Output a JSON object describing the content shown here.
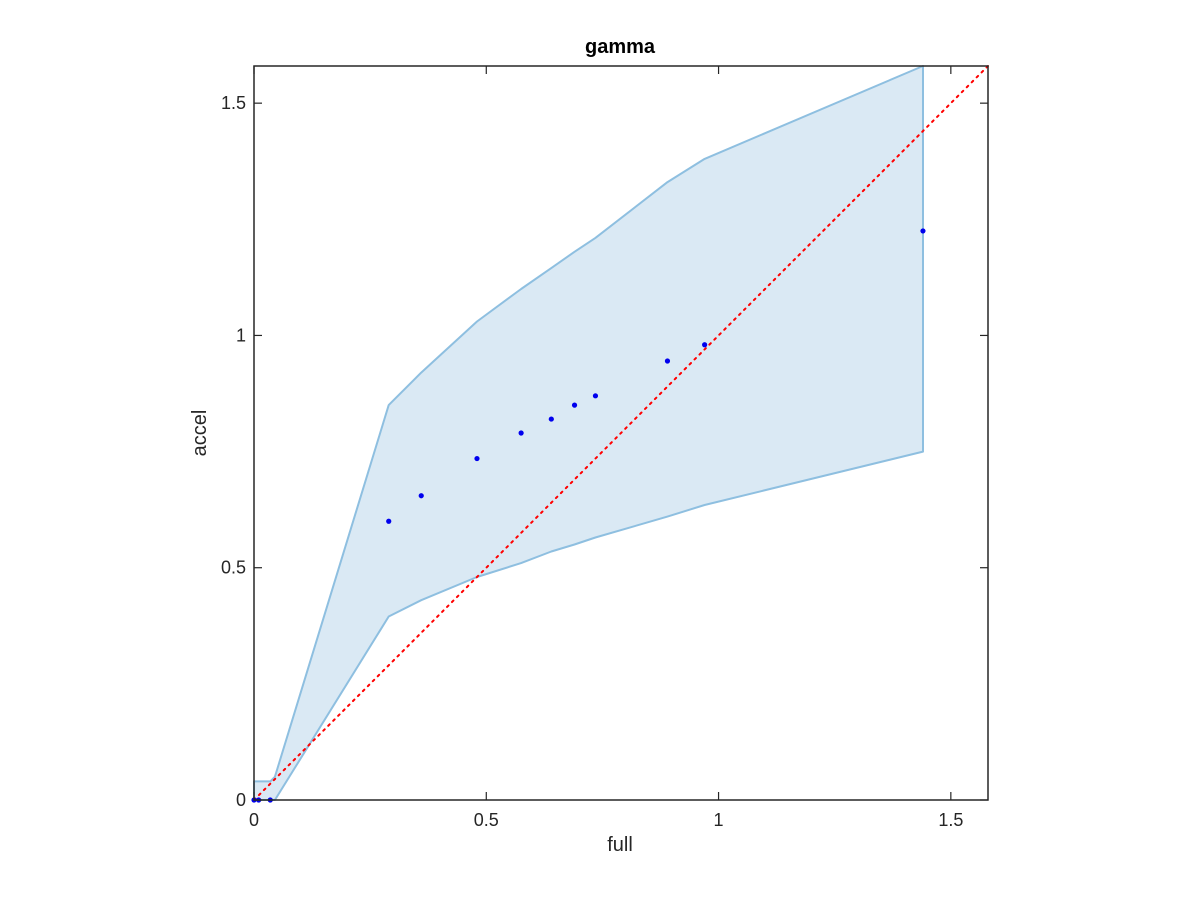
{
  "chart_data": {
    "type": "scatter",
    "title": "gamma",
    "xlabel": "full",
    "ylabel": "accel",
    "xlim": [
      0,
      1.58
    ],
    "ylim": [
      0,
      1.58
    ],
    "x_ticks": [
      "0",
      "0.5",
      "1",
      "1.5"
    ],
    "y_ticks": [
      "0",
      "0.5",
      "1",
      "1.5"
    ],
    "x_tick_values": [
      0,
      0.5,
      1,
      1.5
    ],
    "y_tick_values": [
      0,
      0.5,
      1,
      1.5
    ],
    "grid": false,
    "points": {
      "x": [
        0.0,
        0.01,
        0.035,
        0.29,
        0.36,
        0.48,
        0.575,
        0.64,
        0.69,
        0.735,
        0.89,
        0.97,
        1.44
      ],
      "y": [
        0.0,
        0.0,
        0.0,
        0.6,
        0.655,
        0.735,
        0.79,
        0.82,
        0.85,
        0.87,
        0.945,
        0.98,
        1.225
      ]
    },
    "band": {
      "x": [
        0.0,
        0.035,
        0.045,
        0.29,
        0.36,
        0.48,
        0.575,
        0.64,
        0.69,
        0.735,
        0.89,
        0.97,
        1.44
      ],
      "upper": [
        0.04,
        0.04,
        0.05,
        0.85,
        0.92,
        1.03,
        1.1,
        1.145,
        1.18,
        1.21,
        1.33,
        1.38,
        1.58
      ],
      "lower": [
        0.0,
        0.0,
        0.0,
        0.395,
        0.43,
        0.48,
        0.51,
        0.535,
        0.55,
        0.565,
        0.61,
        0.635,
        0.75
      ],
      "upper_clip": 1.58
    },
    "reference_line": {
      "from": [
        0,
        0
      ],
      "to": [
        1.58,
        1.58
      ],
      "style": "dotted"
    },
    "colors": {
      "points": "#0000ee",
      "band_fill": "#dae9f4",
      "band_edge": "#8ebfe0",
      "reference": "#ff0000",
      "axes": "#262626"
    }
  }
}
